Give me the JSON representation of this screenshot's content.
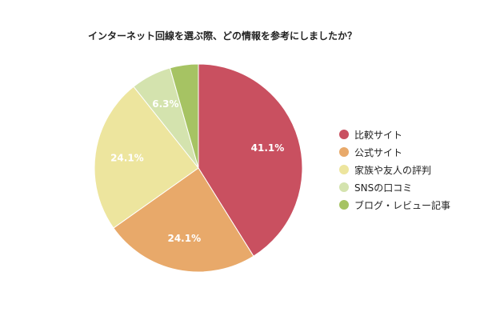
{
  "chart_data": {
    "type": "pie",
    "title": "インターネット回線を選ぶ際、どの情報を参考にしましたか？",
    "legend_position": "right",
    "slices": [
      {
        "label": "比較サイト",
        "value": 41.1,
        "value_label": "41.1%",
        "color": "#c95060"
      },
      {
        "label": "公式サイト",
        "value": 24.1,
        "value_label": "24.1%",
        "color": "#e8a96a"
      },
      {
        "label": "家族や友人の評判",
        "value": 24.1,
        "value_label": "24.1%",
        "color": "#ede59e"
      },
      {
        "label": "SNSの口コミ",
        "value": 6.3,
        "value_label": "6.3%",
        "color": "#d4e3ae"
      },
      {
        "label": "ブログ・レビュー記事",
        "value": 4.4,
        "value_label": "",
        "color": "#a6c363"
      }
    ]
  }
}
